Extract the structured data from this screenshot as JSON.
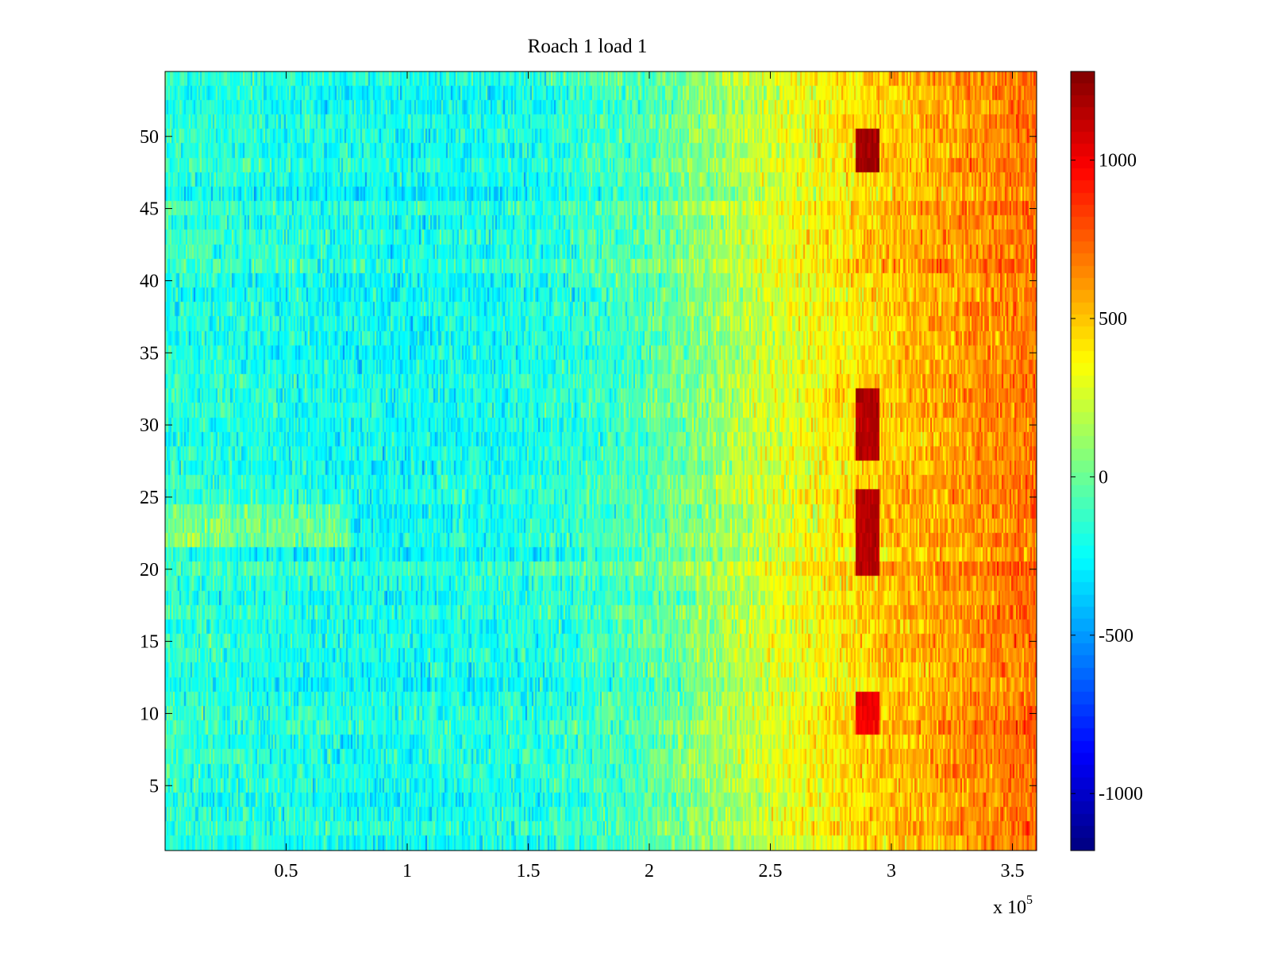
{
  "chart_data": {
    "type": "heatmap",
    "title": "Roach 1 load 1",
    "xlabel": "",
    "ylabel": "",
    "x_exponent_label": "x 10",
    "x_exponent": "5",
    "xlim": [
      0,
      360000
    ],
    "ylim": [
      0.5,
      54.5
    ],
    "x_ticks": [
      50000,
      100000,
      150000,
      200000,
      250000,
      300000,
      350000
    ],
    "x_tick_labels": [
      "0.5",
      "1",
      "1.5",
      "2",
      "2.5",
      "3",
      "3.5"
    ],
    "y_ticks": [
      5,
      10,
      15,
      20,
      25,
      30,
      35,
      40,
      45,
      50
    ],
    "y_tick_labels": [
      "5",
      "10",
      "15",
      "20",
      "25",
      "30",
      "35",
      "40",
      "45",
      "50"
    ],
    "rows": 54,
    "color_scale": {
      "colormap": "jet",
      "range": [
        -1180,
        1280
      ],
      "ticks": [
        -1000,
        -500,
        0,
        500,
        1000
      ],
      "tick_labels": [
        "-1000",
        "-500",
        "0",
        "500",
        "1000"
      ]
    },
    "trend": {
      "description_x": [
        0,
        50000,
        100000,
        150000,
        200000,
        250000,
        300000,
        360000
      ],
      "mean_value": [
        -150,
        -200,
        -230,
        -200,
        -60,
        250,
        500,
        700
      ]
    },
    "hotspots": [
      {
        "x_range": [
          285000,
          295000
        ],
        "y_range": [
          48,
          50
        ],
        "value": 1200
      },
      {
        "x_range": [
          285000,
          295000
        ],
        "y_range": [
          28,
          32
        ],
        "value": 1150
      },
      {
        "x_range": [
          285000,
          295000
        ],
        "y_range": [
          20,
          25
        ],
        "value": 1150
      },
      {
        "x_range": [
          285000,
          295000
        ],
        "y_range": [
          9,
          11
        ],
        "value": 1000
      }
    ],
    "grid": false,
    "colorbar_position": "right"
  }
}
